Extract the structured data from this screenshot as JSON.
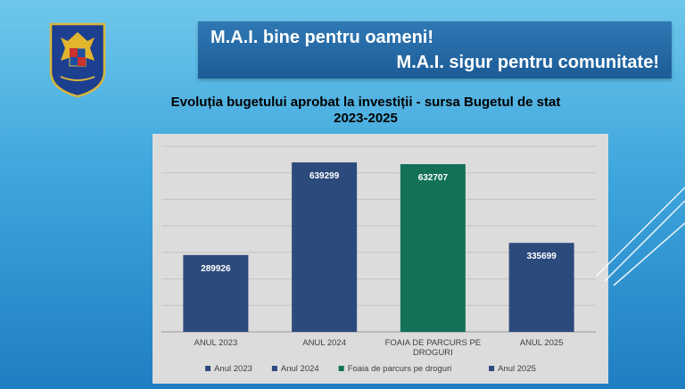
{
  "header": {
    "slogan_line1": "M.A.I. bine pentru oameni!",
    "slogan_line2": "M.A.I. sigur pentru comunitate!"
  },
  "chart_data": {
    "type": "bar",
    "title": "Evoluția bugetului aprobat la investiții - sursa Bugetul de stat",
    "subtitle": "2023-2025",
    "categories": [
      "ANUL 2023",
      "ANUL 2024",
      "FOAIA DE PARCURS PE DROGURI",
      "ANUL 2025"
    ],
    "values": [
      289926,
      639299,
      632707,
      335699
    ],
    "colors": [
      "#2c4a7c",
      "#2c4a7c",
      "#127157",
      "#2c4a7c"
    ],
    "ylim": [
      0,
      700000
    ],
    "grid": true,
    "legend_position": "bottom",
    "legend": [
      {
        "label": "Anul 2023",
        "color": "#2c4a7c"
      },
      {
        "label": "Anul 2024",
        "color": "#2c4a7c"
      },
      {
        "label": "Foaia de parcurs pe droguri",
        "color": "#127157"
      },
      {
        "label": "Anul 2025",
        "color": "#2c4a7c"
      }
    ]
  }
}
